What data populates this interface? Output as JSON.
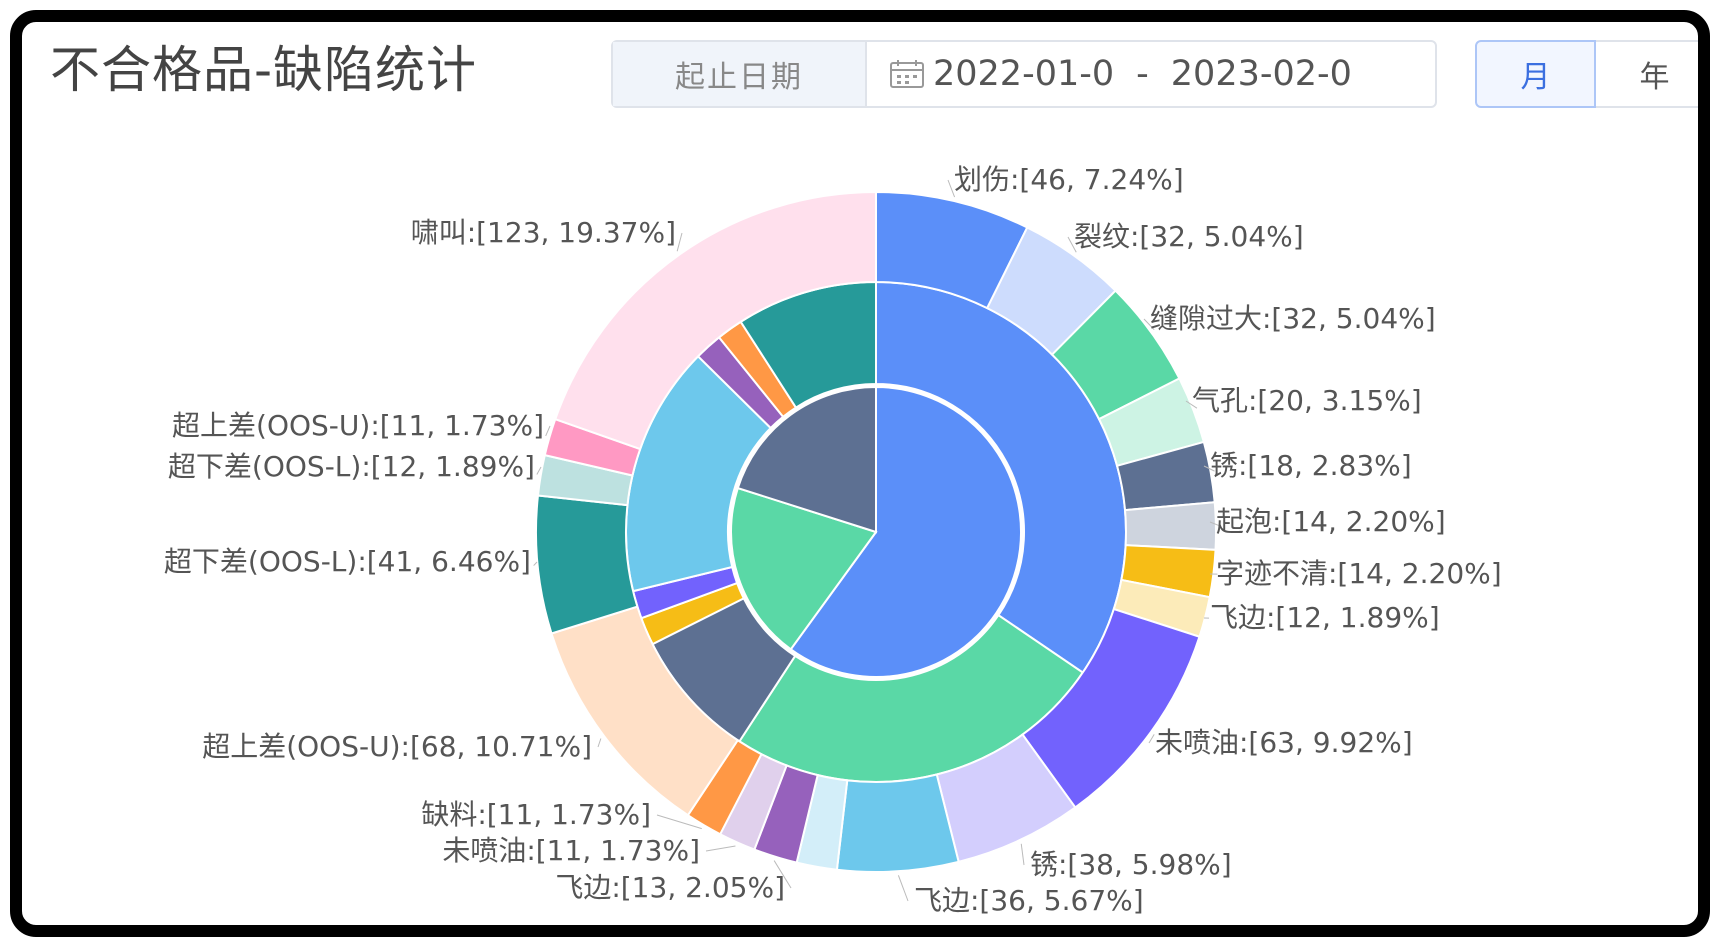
{
  "header": {
    "title": "不合格品-缺陷统计",
    "date_label": "起止日期",
    "date_start": "2022-01-0",
    "date_separator": "-",
    "date_end": "2023-02-0",
    "period_options": [
      "月",
      "年"
    ],
    "period_selected": "月",
    "calendar_icon": "calendar-icon"
  },
  "chart_data": {
    "type": "pie",
    "variant": "nested-donut",
    "title": "",
    "rings": [
      {
        "name": "",
        "slices": [
          {
            "value": 60.0,
            "color": "#5b8ff9"
          },
          {
            "value": 19.9,
            "color": "#5ad8a6"
          },
          {
            "value": 20.1,
            "color": "#5d7092"
          }
        ]
      },
      {
        "name": "",
        "slices": [
          {
            "value": 34.5,
            "color": "#5b8ff9"
          },
          {
            "value": 24.7,
            "color": "#5ad8a6"
          },
          {
            "value": 8.4,
            "color": "#5d7092"
          },
          {
            "value": 1.8,
            "color": "#f6bd16"
          },
          {
            "value": 1.8,
            "color": "#7262fd"
          },
          {
            "value": 16.2,
            "color": "#6dc8ec"
          },
          {
            "value": 1.8,
            "color": "#9661bc"
          },
          {
            "value": 1.7,
            "color": "#ff9845"
          },
          {
            "value": 9.1,
            "color": "#269a99"
          }
        ]
      },
      {
        "name": "",
        "slices": [
          {
            "label": "划伤",
            "value": 46,
            "percent": "7.24%",
            "color": "#5b8ff9"
          },
          {
            "label": "裂纹",
            "value": 32,
            "percent": "5.04%",
            "color": "#cddcfd"
          },
          {
            "label": "缝隙过大",
            "value": 32,
            "percent": "5.04%",
            "color": "#5ad8a6"
          },
          {
            "label": "气孔",
            "value": 20,
            "percent": "3.15%",
            "color": "#cdf3e4"
          },
          {
            "label": "锈",
            "value": 18,
            "percent": "2.83%",
            "color": "#5d7092"
          },
          {
            "label": "起泡",
            "value": 14,
            "percent": "2.20%",
            "color": "#ced4de"
          },
          {
            "label": "字迹不清",
            "value": 14,
            "percent": "2.20%",
            "color": "#f6bd16"
          },
          {
            "label": "飞边",
            "value": 12,
            "percent": "1.89%",
            "color": "#fcebb9"
          },
          {
            "label": "未喷油",
            "value": 63,
            "percent": "9.92%",
            "color": "#7262fd"
          },
          {
            "label": "锈",
            "value": 38,
            "percent": "5.98%",
            "color": "#d3cefd"
          },
          {
            "label": "飞边",
            "value": 36,
            "percent": "5.67%",
            "color": "#6dc8ec"
          },
          {
            "label": "",
            "value": 12,
            "percent": "",
            "color": "#d3eef9"
          },
          {
            "label": "飞边",
            "value": 13,
            "percent": "2.05%",
            "color": "#9661bc"
          },
          {
            "label": "未喷油",
            "value": 11,
            "percent": "1.73%",
            "color": "#e0d0ec"
          },
          {
            "label": "缺料",
            "value": 11,
            "percent": "1.73%",
            "color": "#ff9845"
          },
          {
            "label": "超上差(OOS-U)",
            "value": 68,
            "percent": "10.71%",
            "color": "#ffe0c7"
          },
          {
            "label": "超下差(OOS-L)",
            "value": 41,
            "percent": "6.46%",
            "color": "#269a99"
          },
          {
            "label": "超下差(OOS-L)",
            "value": 12,
            "percent": "1.89%",
            "color": "#bde1e0"
          },
          {
            "label": "超上差(OOS-U)",
            "value": 11,
            "percent": "1.73%",
            "color": "#ff99c3"
          },
          {
            "label": "啸叫",
            "value": 123,
            "percent": "19.37%",
            "color": "#ffe0ed"
          }
        ]
      }
    ],
    "legend": "none"
  }
}
